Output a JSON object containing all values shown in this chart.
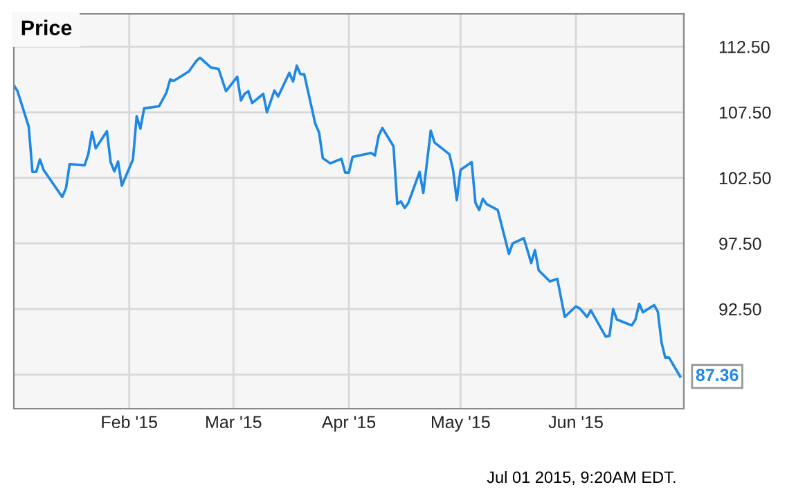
{
  "chart_data": {
    "type": "line",
    "title": "Price",
    "x": [
      "2015-01-01",
      "2015-01-02",
      "2015-01-05",
      "2015-01-06",
      "2015-01-07",
      "2015-01-08",
      "2015-01-09",
      "2015-01-14",
      "2015-01-15",
      "2015-01-16",
      "2015-01-20",
      "2015-01-21",
      "2015-01-22",
      "2015-01-23",
      "2015-01-26",
      "2015-01-27",
      "2015-01-28",
      "2015-01-29",
      "2015-01-30",
      "2015-02-02",
      "2015-02-03",
      "2015-02-04",
      "2015-02-05",
      "2015-02-09",
      "2015-02-11",
      "2015-02-12",
      "2015-02-13",
      "2015-02-17",
      "2015-02-19",
      "2015-02-20",
      "2015-02-23",
      "2015-02-25",
      "2015-02-27",
      "2015-03-02",
      "2015-03-03",
      "2015-03-04",
      "2015-03-05",
      "2015-03-06",
      "2015-03-09",
      "2015-03-10",
      "2015-03-12",
      "2015-03-13",
      "2015-03-16",
      "2015-03-17",
      "2015-03-18",
      "2015-03-19",
      "2015-03-20",
      "2015-03-23",
      "2015-03-24",
      "2015-03-25",
      "2015-03-27",
      "2015-03-30",
      "2015-03-31",
      "2015-04-01",
      "2015-04-02",
      "2015-04-07",
      "2015-04-08",
      "2015-04-09",
      "2015-04-10",
      "2015-04-13",
      "2015-04-14",
      "2015-04-15",
      "2015-04-16",
      "2015-04-17",
      "2015-04-20",
      "2015-04-21",
      "2015-04-23",
      "2015-04-24",
      "2015-04-28",
      "2015-04-29",
      "2015-04-30",
      "2015-05-01",
      "2015-05-04",
      "2015-05-05",
      "2015-05-06",
      "2015-05-07",
      "2015-05-08",
      "2015-05-11",
      "2015-05-14",
      "2015-05-15",
      "2015-05-18",
      "2015-05-20",
      "2015-05-21",
      "2015-05-22",
      "2015-05-25",
      "2015-05-27",
      "2015-05-29",
      "2015-06-01",
      "2015-06-02",
      "2015-06-04",
      "2015-06-05",
      "2015-06-09",
      "2015-06-10",
      "2015-06-11",
      "2015-06-12",
      "2015-06-16",
      "2015-06-17",
      "2015-06-18",
      "2015-06-19",
      "2015-06-22",
      "2015-06-23",
      "2015-06-24",
      "2015-06-25",
      "2015-06-26",
      "2015-06-29"
    ],
    "series": [
      {
        "color": "#1e88e5",
        "values": [
          109.57,
          109.1,
          106.4,
          102.95,
          102.95,
          103.9,
          103.1,
          101.05,
          101.7,
          103.55,
          103.45,
          104.3,
          106.0,
          104.75,
          106.05,
          103.7,
          103.0,
          103.75,
          101.9,
          103.9,
          107.2,
          106.25,
          107.8,
          107.95,
          109.0,
          110.0,
          109.9,
          110.6,
          111.4,
          111.65,
          110.9,
          110.8,
          109.1,
          110.2,
          108.4,
          108.9,
          109.1,
          108.2,
          108.9,
          107.5,
          109.15,
          108.7,
          110.5,
          109.85,
          111.05,
          110.4,
          110.4,
          106.6,
          105.95,
          104.0,
          103.6,
          103.95,
          102.9,
          102.9,
          104.1,
          104.4,
          104.2,
          105.7,
          106.3,
          104.9,
          100.5,
          100.7,
          100.2,
          100.6,
          102.95,
          101.35,
          106.1,
          105.2,
          104.3,
          103.1,
          100.8,
          103.1,
          103.7,
          100.6,
          100.05,
          100.9,
          100.5,
          100.05,
          96.7,
          97.5,
          97.9,
          96.0,
          97.0,
          95.45,
          94.6,
          94.8,
          91.9,
          92.7,
          92.55,
          91.9,
          92.4,
          90.4,
          90.45,
          92.5,
          91.7,
          91.25,
          91.7,
          92.9,
          92.25,
          92.8,
          92.3,
          89.95,
          88.8,
          88.8,
          87.36
        ],
        "value_labels": [
          null,
          null,
          null,
          null,
          null,
          null,
          null,
          null,
          null,
          null,
          null,
          null,
          null,
          null,
          null,
          null,
          null,
          null,
          null,
          null,
          null,
          null,
          null,
          null,
          null,
          null,
          null,
          null,
          null,
          null,
          null,
          null,
          null,
          null,
          null,
          null,
          null,
          null,
          null,
          null,
          null,
          null,
          null,
          null,
          null,
          null,
          null,
          null,
          null,
          null,
          null,
          null,
          null,
          null,
          null,
          null,
          null,
          null,
          null,
          null,
          null,
          null,
          null,
          null,
          null,
          null,
          null,
          null,
          null,
          null,
          null,
          null,
          null,
          null,
          null,
          null,
          null,
          null,
          null,
          null,
          null,
          null,
          null,
          null,
          null,
          null,
          null,
          null,
          null,
          null,
          null,
          null,
          null,
          null,
          null,
          null,
          null,
          null,
          null,
          null,
          null,
          null,
          null,
          null,
          "87.36"
        ]
      }
    ],
    "xlim": [
      "2015-01-01",
      "2015-06-30"
    ],
    "xticks": [
      {
        "value": "2015-02-01",
        "label": "Feb '15"
      },
      {
        "value": "2015-03-01",
        "label": "Mar '15"
      },
      {
        "value": "2015-04-01",
        "label": "Apr '15"
      },
      {
        "value": "2015-05-01",
        "label": "May '15"
      },
      {
        "value": "2015-06-01",
        "label": "Jun '15"
      }
    ],
    "ylim": [
      84.9,
      115.0
    ],
    "yticks": [
      {
        "value": 87.5,
        "label": null
      },
      {
        "value": 92.5,
        "label": "92.50"
      },
      {
        "value": 97.5,
        "label": "97.50"
      },
      {
        "value": 102.5,
        "label": "102.50"
      },
      {
        "value": 107.5,
        "label": "107.50"
      },
      {
        "value": 112.5,
        "label": "112.50"
      }
    ],
    "grid": true,
    "marker": "none",
    "line_style": "solid",
    "annotations": [
      "Jul 01 2015, 9:20AM EDT."
    ]
  }
}
